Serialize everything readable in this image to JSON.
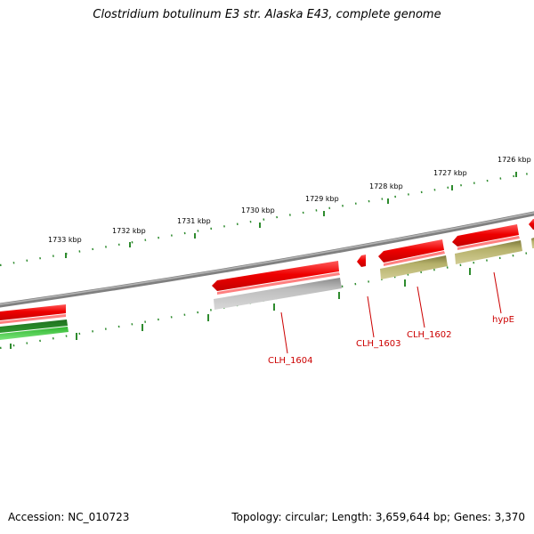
{
  "header": {
    "title": "Clostridium botulinum E3 str. Alaska E43, complete genome"
  },
  "footer": {
    "accession": "Accession: NC_010723",
    "topology": "Topology: circular; Length: 3,659,644 bp; Genes: 3,370"
  },
  "ruler": {
    "tick_labels": [
      "1733 kbp",
      "1732 kbp",
      "1731 kbp",
      "1730 kbp",
      "1729 kbp",
      "1728 kbp",
      "1727 kbp",
      "1726 kbp"
    ]
  },
  "genes": {
    "labels": [
      "CLH_1604",
      "CLH_1603",
      "CLH_1602",
      "hypE"
    ]
  },
  "colors": {
    "backbone": "#7f7f7f",
    "ruler_ticks": "#2e8b2e",
    "gene_red": "#ee0000",
    "gene_grey": "#b0b0b0",
    "gene_olive": "#b5b06a",
    "gene_green": "#2db82d",
    "label_red": "#cc0000"
  }
}
